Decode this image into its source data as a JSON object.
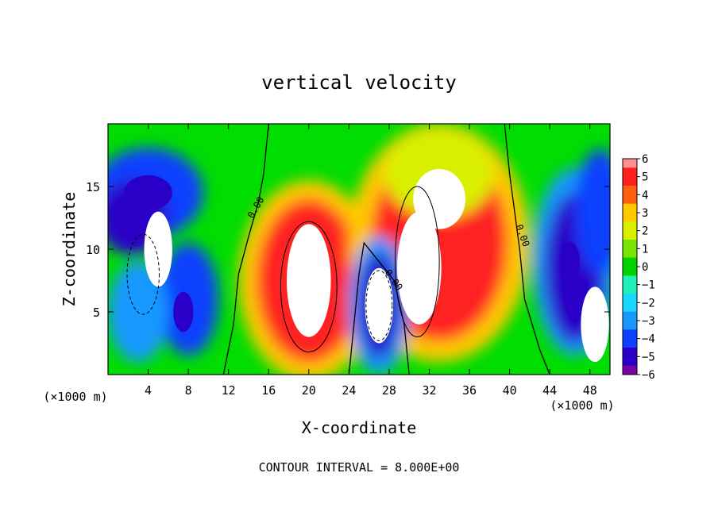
{
  "chart_data": {
    "type": "heatmap",
    "title": "vertical velocity",
    "xlabel": "X-coordinate",
    "ylabel": "Z-coordinate",
    "x_unit_left": "(×1000 m)",
    "x_unit_right": "(×1000 m)",
    "xlim": [
      0,
      50
    ],
    "ylim": [
      0,
      20
    ],
    "x_ticks": [
      4,
      8,
      12,
      16,
      20,
      24,
      28,
      32,
      36,
      40,
      44,
      48
    ],
    "y_ticks": [
      5,
      10,
      15
    ],
    "colorbar": {
      "min": -6,
      "max": 6,
      "ticks": [
        6,
        5,
        4,
        3,
        2,
        1,
        0,
        -1,
        -2,
        -3,
        -4,
        -5,
        -6
      ],
      "tick_labels": [
        "6",
        "5",
        "4",
        "3",
        "2",
        "1",
        "0",
        "−1",
        "−2",
        "−3",
        "−4",
        "−5",
        "−6"
      ]
    },
    "contour_labels": [
      "0.00",
      "0.00",
      "0.00"
    ],
    "footer": "CONTOUR INTERVAL = 8.000E+00",
    "features": [
      {
        "x": 20,
        "z": 7.5,
        "value": 8,
        "shape": "updraft core"
      },
      {
        "x": 31,
        "z": 8.5,
        "value": 8,
        "shape": "updraft core"
      },
      {
        "x": 33,
        "z": 14,
        "value": 7,
        "shape": "updraft upper lobe"
      },
      {
        "x": 27,
        "z": 5.5,
        "value": -8,
        "shape": "downdraft core"
      },
      {
        "x": 5,
        "z": 10,
        "value": -8,
        "shape": "downdraft core"
      },
      {
        "x": 4,
        "z": 14.5,
        "value": -5,
        "shape": "downdraft upper"
      },
      {
        "x": 7.5,
        "z": 5,
        "value": -5,
        "shape": "downdraft"
      },
      {
        "x": 46,
        "z": 9,
        "value": -5,
        "shape": "downdraft"
      },
      {
        "x": 48.5,
        "z": 4,
        "value": -8,
        "shape": "downdraft core"
      }
    ]
  }
}
